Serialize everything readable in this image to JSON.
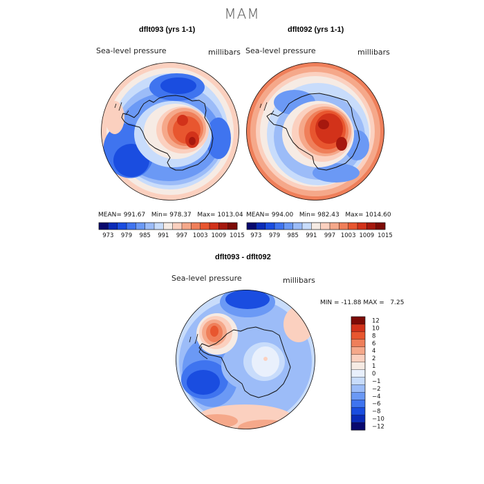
{
  "figure": {
    "title": "MAM"
  },
  "colors": {
    "abs_scale": [
      "#08086e",
      "#0a2bb8",
      "#1a4de0",
      "#3f74ef",
      "#6b99f5",
      "#9cbcf8",
      "#c8dcfb",
      "#f6ebe4",
      "#fbd0bf",
      "#f5a88a",
      "#ef7f5a",
      "#e8562f",
      "#d2321a",
      "#a6180e",
      "#7d0b06"
    ],
    "diff_scale": [
      "#08086e",
      "#0a2bb8",
      "#1a4de0",
      "#3f74ef",
      "#6b99f5",
      "#9cbcf8",
      "#c8dcfb",
      "#e9f0fc",
      "#f6ebe4",
      "#fbd0bf",
      "#f5a88a",
      "#ef7f5a",
      "#e8562f",
      "#d2321a",
      "#7d0b06"
    ],
    "coast": "#111111"
  },
  "chart_data": [
    {
      "type": "heatmap",
      "title": "dflt093 (yrs 1-1)",
      "field": "Sea-level pressure",
      "units": "millibars",
      "projection": "south polar stereographic",
      "stats": {
        "mean_label": "MEAN=",
        "mean": "991.67",
        "min_label": "Min=",
        "min": "978.37",
        "max_label": "Max=",
        "max": "1013.04"
      },
      "colorbar_levels": [
        970,
        973,
        976,
        979,
        982,
        985,
        988,
        991,
        994,
        997,
        1000,
        1003,
        1006,
        1009,
        1012,
        1015
      ],
      "colorbar_ticks": [
        "973",
        "979",
        "985",
        "991",
        "997",
        "1003",
        "1009",
        "1015"
      ]
    },
    {
      "type": "heatmap",
      "title": "dflt092 (yrs 1-1)",
      "field": "Sea-level pressure",
      "units": "millibars",
      "projection": "south polar stereographic",
      "stats": {
        "mean_label": "MEAN=",
        "mean": "994.00",
        "min_label": "Min=",
        "min": "982.43",
        "max_label": "Max=",
        "max": "1014.60"
      },
      "colorbar_levels": [
        970,
        973,
        976,
        979,
        982,
        985,
        988,
        991,
        994,
        997,
        1000,
        1003,
        1006,
        1009,
        1012,
        1015
      ],
      "colorbar_ticks": [
        "973",
        "979",
        "985",
        "991",
        "997",
        "1003",
        "1009",
        "1015"
      ]
    },
    {
      "type": "heatmap",
      "title": "dflt093 - dflt092",
      "field": "Sea-level pressure",
      "units": "millibars",
      "projection": "south polar stereographic",
      "stats": {
        "min_label": "MIN =",
        "min": "-11.88",
        "max_label": "MAX =",
        "max": "7.25"
      },
      "colorbar_ticks": [
        "12",
        "10",
        "8",
        "6",
        "4",
        "2",
        "1",
        "0",
        "−1",
        "−2",
        "−4",
        "−6",
        "−8",
        "−10",
        "−12"
      ]
    }
  ]
}
